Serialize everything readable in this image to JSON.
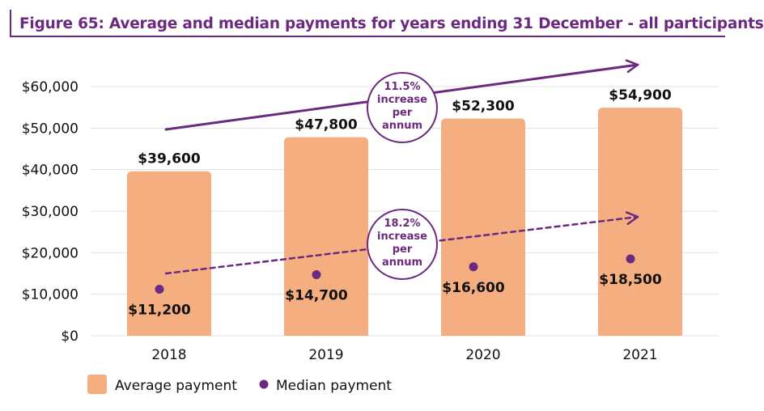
{
  "title": "Figure 65: Average and median payments for years ending 31 December - all participants",
  "colors": {
    "bar": "#f5ae80",
    "median": "#6b2a7f",
    "accent": "#6b2a7f",
    "grid": "#e0e0e0"
  },
  "chart_data": {
    "type": "bar",
    "categories": [
      "2018",
      "2019",
      "2020",
      "2021"
    ],
    "ylim": [
      0,
      60000
    ],
    "yticks": [
      0,
      10000,
      20000,
      30000,
      40000,
      50000,
      60000
    ],
    "ytick_labels": [
      "$0",
      "$10,000",
      "$20,000",
      "$30,000",
      "$40,000",
      "$50,000",
      "$60,000"
    ],
    "grid": true,
    "legend_position": "bottom-left",
    "series": [
      {
        "name": "Average payment",
        "type": "bar",
        "values": [
          39600,
          47800,
          52300,
          54900
        ],
        "labels": [
          "$39,600",
          "$47,800",
          "$52,300",
          "$54,900"
        ]
      },
      {
        "name": "Median payment",
        "type": "scatter",
        "values": [
          11200,
          14700,
          16600,
          18500
        ],
        "labels": [
          "$11,200",
          "$14,700",
          "$16,600",
          "$18,500"
        ]
      }
    ],
    "annotations": [
      {
        "series": "Average payment",
        "style": "solid",
        "lines": [
          "11.5%",
          "increase",
          "per",
          "annum"
        ]
      },
      {
        "series": "Median payment",
        "style": "dashed",
        "lines": [
          "18.2%",
          "increase",
          "per",
          "annum"
        ]
      }
    ]
  }
}
